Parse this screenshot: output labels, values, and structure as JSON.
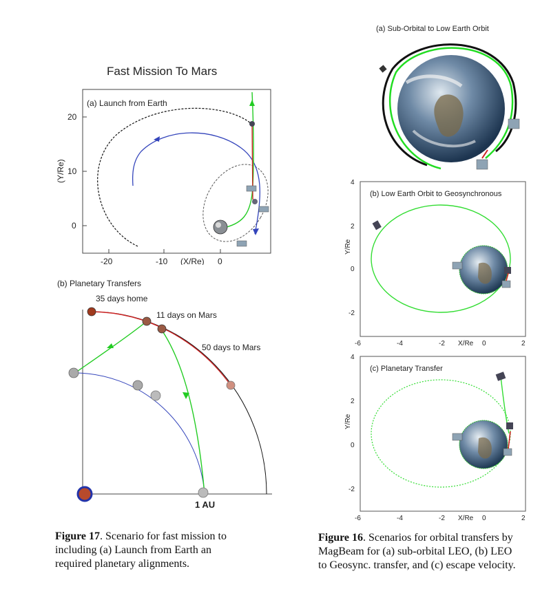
{
  "figure17": {
    "title": "Fast Mission To Mars",
    "panel_a": {
      "label": "(a) Launch from Earth",
      "y_label": "(Y/Re)",
      "x_label": "(X/Re)",
      "y_ticks": [
        "20",
        "10",
        "0"
      ],
      "x_ticks": [
        "-20",
        "-10",
        "0"
      ]
    },
    "panel_b": {
      "label": "(b) Planetary Transfers",
      "annotations": [
        "35 days home",
        "11 days on Mars",
        "50 days to Mars",
        "1 AU"
      ]
    },
    "caption_label": "Figure 17",
    "caption_text": ". Scenario for fast mission to including (a) Launch from Earth an required planetary alignments.",
    "caption_lines": [
      ". Scenario for fast mission to",
      "including (a) Launch from Earth an",
      "required planetary alignments."
    ]
  },
  "figure16": {
    "panel_a": {
      "label": "(a) Sub-Orbital to Low Earth Orbit"
    },
    "panel_b": {
      "label": "(b) Low Earth Orbit to Geosynchronous",
      "y_label": "Y/Re",
      "x_label": "X/Re",
      "y_ticks": [
        "2",
        "0",
        "-2"
      ],
      "x_ticks": [
        "-6",
        "-4",
        "-2",
        "0",
        "2"
      ],
      "top_tick": "4"
    },
    "panel_c": {
      "label": "(c) Planetary Transfer",
      "y_label": "Y/Re",
      "x_label": "X/Re",
      "y_ticks": [
        "2",
        "0",
        "-2"
      ],
      "x_ticks": [
        "-6",
        "-4",
        "-2",
        "0",
        "2"
      ],
      "top_tick": "4"
    },
    "caption_label": "Figure 16",
    "caption_lines": [
      ". Scenarios for orbital transfers by",
      "MagBeam for (a) sub-orbital LEO, (b) LEO",
      "to Geosync. transfer, and (c) escape velocity."
    ]
  },
  "colors": {
    "green": "#22cc22",
    "blue": "#3344bb",
    "red": "#cc2222",
    "black": "#111111"
  }
}
